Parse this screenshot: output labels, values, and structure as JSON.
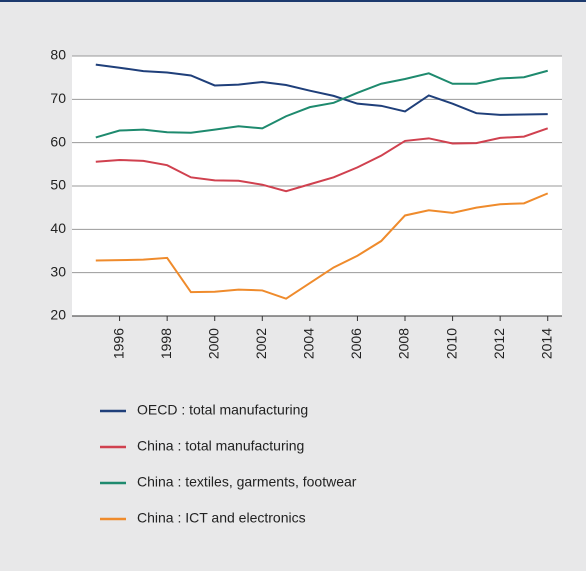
{
  "chart_data": {
    "type": "line",
    "x": [
      1995,
      1996,
      1997,
      1998,
      1999,
      2000,
      2001,
      2002,
      2003,
      2004,
      2005,
      2006,
      2007,
      2008,
      2009,
      2010,
      2011,
      2012,
      2013,
      2014
    ],
    "series": [
      {
        "name": "OECD : total manufacturing",
        "color": "#1f3f7a",
        "values": [
          78,
          77.3,
          76.5,
          76.2,
          75.5,
          73.2,
          73.4,
          74,
          73.3,
          72,
          70.8,
          69,
          68.5,
          67.2,
          70.9,
          69,
          66.8,
          66.4,
          66.5,
          66.6
        ]
      },
      {
        "name": "China : total manufacturing",
        "color": "#d0414f",
        "values": [
          55.6,
          56,
          55.8,
          54.8,
          52,
          51.3,
          51.2,
          50.3,
          48.8,
          50.4,
          52,
          54.3,
          57,
          60.4,
          61,
          59.8,
          59.9,
          61.1,
          61.4,
          63.3
        ]
      },
      {
        "name": "China : textiles, garments, footwear",
        "color": "#1e8a6e",
        "values": [
          61.2,
          62.8,
          63,
          62.4,
          62.3,
          63,
          63.8,
          63.3,
          66.1,
          68.2,
          69.2,
          71.5,
          73.6,
          74.7,
          76,
          73.6,
          73.6,
          74.8,
          75.1,
          76.6
        ]
      },
      {
        "name": "China : ICT and electronics",
        "color": "#ef8b2c",
        "values": [
          32.8,
          32.9,
          33,
          33.4,
          25.5,
          25.6,
          26.1,
          25.9,
          24,
          27.6,
          31.2,
          33.9,
          37.3,
          43.2,
          44.4,
          43.8,
          45,
          45.8,
          46,
          48.3
        ]
      }
    ],
    "xlim": [
      1994,
      2014.6
    ],
    "xticks": [
      1996,
      1998,
      2000,
      2002,
      2004,
      2006,
      2008,
      2010,
      2012,
      2014
    ],
    "ylim": [
      20,
      80
    ],
    "yticks": [
      20,
      30,
      40,
      50,
      60,
      70,
      80
    ],
    "grid": true
  }
}
